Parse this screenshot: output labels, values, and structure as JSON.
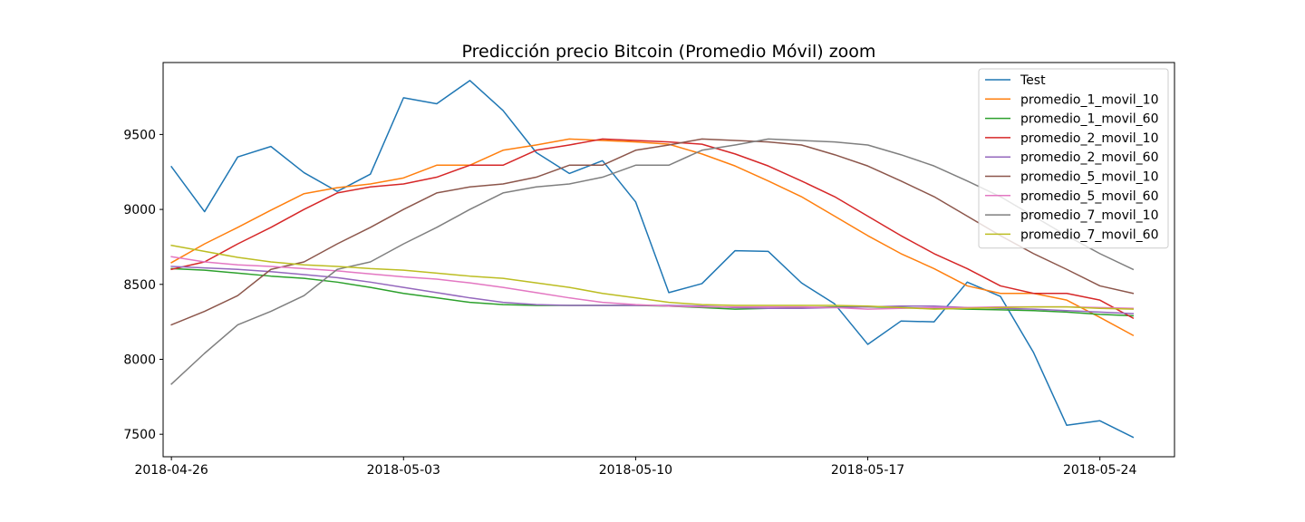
{
  "chart_data": {
    "type": "line",
    "title": "Predicción precio Bitcoin (Promedio Móvil) zoom",
    "xlabel": "",
    "ylabel": "",
    "x_start": "2018-04-26",
    "x_end": "2018-05-25",
    "xlim": [
      "2018-04-25 18:00",
      "2018-05-26 06:00"
    ],
    "ylim": [
      7350,
      9980
    ],
    "x_ticks": [
      "2018-04-26",
      "2018-05-03",
      "2018-05-10",
      "2018-05-17",
      "2018-05-24"
    ],
    "y_ticks": [
      7500,
      8000,
      8500,
      9000,
      9500
    ],
    "grid": false,
    "legend_position": "upper right",
    "series": [
      {
        "name": "Test",
        "color": "#1f77b4",
        "values": [
          9285,
          8985,
          9350,
          9420,
          9245,
          9120,
          9235,
          9745,
          9705,
          9860,
          9660,
          9380,
          9240,
          9325,
          9050,
          8445,
          8505,
          8725,
          8720,
          8510,
          8370,
          8100,
          8255,
          8250,
          8515,
          8420,
          8045,
          7560,
          7590,
          7480
        ]
      },
      {
        "name": "promedio_1_movil_10",
        "color": "#ff7f0e",
        "values": [
          8645,
          8770,
          8880,
          8995,
          9105,
          9145,
          9170,
          9210,
          9295,
          9295,
          9395,
          9430,
          9470,
          9460,
          9450,
          9435,
          9370,
          9290,
          9190,
          9085,
          8955,
          8825,
          8705,
          8605,
          8490,
          8440,
          8440,
          8395,
          8280,
          8160
        ]
      },
      {
        "name": "promedio_1_movil_60",
        "color": "#2ca02c",
        "values": [
          8605,
          8595,
          8575,
          8555,
          8540,
          8515,
          8480,
          8440,
          8410,
          8380,
          8365,
          8360,
          8360,
          8360,
          8360,
          8355,
          8345,
          8335,
          8340,
          8345,
          8350,
          8350,
          8345,
          8340,
          8335,
          8330,
          8325,
          8315,
          8300,
          8290
        ]
      },
      {
        "name": "promedio_2_movil_10",
        "color": "#d62728",
        "values": [
          8600,
          8650,
          8770,
          8880,
          9000,
          9110,
          9150,
          9170,
          9215,
          9295,
          9295,
          9395,
          9430,
          9470,
          9460,
          9450,
          9435,
          9370,
          9290,
          9190,
          9085,
          8955,
          8825,
          8705,
          8605,
          8490,
          8440,
          8440,
          8395,
          8275
        ]
      },
      {
        "name": "promedio_2_movil_60",
        "color": "#9467bd",
        "values": [
          8620,
          8610,
          8600,
          8585,
          8565,
          8545,
          8515,
          8480,
          8445,
          8410,
          8380,
          8365,
          8360,
          8360,
          8360,
          8360,
          8355,
          8345,
          8340,
          8340,
          8345,
          8350,
          8355,
          8355,
          8345,
          8340,
          8335,
          8325,
          8315,
          8305
        ]
      },
      {
        "name": "promedio_5_movil_10",
        "color": "#8c564b",
        "values": [
          8230,
          8320,
          8425,
          8600,
          8650,
          8770,
          8880,
          9000,
          9110,
          9150,
          9170,
          9215,
          9295,
          9295,
          9395,
          9430,
          9470,
          9460,
          9450,
          9430,
          9365,
          9290,
          9190,
          9085,
          8955,
          8825,
          8705,
          8600,
          8490,
          8440
        ]
      },
      {
        "name": "promedio_5_movil_60",
        "color": "#e377c2",
        "values": [
          8685,
          8650,
          8630,
          8620,
          8605,
          8590,
          8570,
          8550,
          8535,
          8510,
          8480,
          8445,
          8410,
          8380,
          8365,
          8355,
          8350,
          8350,
          8350,
          8350,
          8345,
          8335,
          8340,
          8345,
          8345,
          8350,
          8350,
          8350,
          8345,
          8340
        ]
      },
      {
        "name": "promedio_7_movil_10",
        "color": "#7f7f7f",
        "values": [
          7835,
          8040,
          8230,
          8320,
          8425,
          8600,
          8650,
          8770,
          8880,
          9000,
          9110,
          9150,
          9170,
          9215,
          9295,
          9295,
          9395,
          9430,
          9470,
          9460,
          9450,
          9430,
          9365,
          9290,
          9190,
          9085,
          8955,
          8825,
          8705,
          8600
        ]
      },
      {
        "name": "promedio_7_movil_60",
        "color": "#bcbd22",
        "values": [
          8760,
          8720,
          8680,
          8650,
          8630,
          8620,
          8605,
          8595,
          8575,
          8555,
          8540,
          8510,
          8480,
          8440,
          8410,
          8380,
          8365,
          8360,
          8360,
          8360,
          8360,
          8355,
          8345,
          8335,
          8340,
          8345,
          8350,
          8350,
          8340,
          8335
        ]
      }
    ]
  }
}
